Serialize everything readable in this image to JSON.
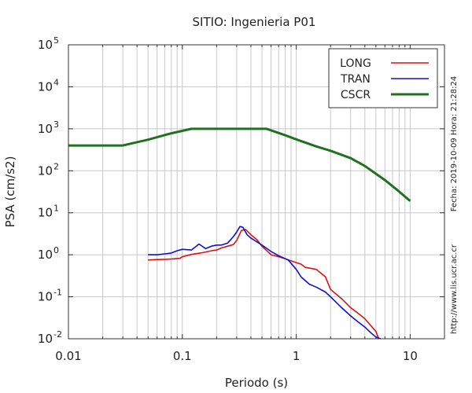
{
  "chart_data": {
    "type": "line",
    "title": "SITIO: Ingenieria P01",
    "xlabel": "Periodo (s)",
    "ylabel": "PSA (cm/s2)",
    "x_scale": "log",
    "y_scale": "log",
    "xlim": [
      0.01,
      20
    ],
    "ylim": [
      0.01,
      100000
    ],
    "grid": true,
    "legend_position": "top-right",
    "x_tick_labels": [
      "0.01",
      "0.1",
      "1",
      "10"
    ],
    "y_tick_labels": [
      {
        "base": "10",
        "exp": "5"
      },
      {
        "base": "10",
        "exp": "4"
      },
      {
        "base": "10",
        "exp": "3"
      },
      {
        "base": "10",
        "exp": "2"
      },
      {
        "base": "10",
        "exp": "1"
      },
      {
        "base": "10",
        "exp": "0"
      },
      {
        "base": "10",
        "exp": "-1"
      },
      {
        "base": "10",
        "exp": "-2"
      }
    ],
    "side_annotations": {
      "date": "Fecha: 2019-10-09 Hora: 21:28:24",
      "url": "http://www.lis.ucr.ac.cr"
    },
    "series": [
      {
        "name": "LONG",
        "color": "#e01010",
        "points": [
          [
            0.05,
            0.75
          ],
          [
            0.06,
            0.77
          ],
          [
            0.07,
            0.78
          ],
          [
            0.08,
            0.79
          ],
          [
            0.095,
            0.82
          ],
          [
            0.1,
            0.9
          ],
          [
            0.12,
            1.02
          ],
          [
            0.15,
            1.12
          ],
          [
            0.18,
            1.25
          ],
          [
            0.2,
            1.3
          ],
          [
            0.22,
            1.45
          ],
          [
            0.25,
            1.6
          ],
          [
            0.28,
            1.75
          ],
          [
            0.3,
            2.2
          ],
          [
            0.33,
            3.8
          ],
          [
            0.36,
            4.0
          ],
          [
            0.4,
            3.0
          ],
          [
            0.45,
            2.3
          ],
          [
            0.5,
            1.6
          ],
          [
            0.6,
            1.0
          ],
          [
            0.7,
            0.9
          ],
          [
            0.8,
            0.8
          ],
          [
            1.0,
            0.65
          ],
          [
            1.1,
            0.6
          ],
          [
            1.2,
            0.5
          ],
          [
            1.5,
            0.45
          ],
          [
            1.8,
            0.3
          ],
          [
            2.0,
            0.15
          ],
          [
            2.5,
            0.09
          ],
          [
            3.0,
            0.055
          ],
          [
            3.5,
            0.04
          ],
          [
            4.0,
            0.03
          ],
          [
            5.0,
            0.015
          ],
          [
            5.3,
            0.01
          ]
        ]
      },
      {
        "name": "TRAN",
        "color": "#1010d0",
        "points": [
          [
            0.05,
            1.0
          ],
          [
            0.06,
            1.0
          ],
          [
            0.07,
            1.05
          ],
          [
            0.08,
            1.1
          ],
          [
            0.09,
            1.25
          ],
          [
            0.1,
            1.35
          ],
          [
            0.12,
            1.3
          ],
          [
            0.14,
            1.8
          ],
          [
            0.16,
            1.4
          ],
          [
            0.18,
            1.6
          ],
          [
            0.2,
            1.7
          ],
          [
            0.22,
            1.7
          ],
          [
            0.25,
            1.9
          ],
          [
            0.28,
            2.7
          ],
          [
            0.3,
            3.5
          ],
          [
            0.32,
            4.7
          ],
          [
            0.34,
            4.5
          ],
          [
            0.37,
            3.0
          ],
          [
            0.4,
            2.5
          ],
          [
            0.5,
            1.7
          ],
          [
            0.6,
            1.2
          ],
          [
            0.7,
            0.95
          ],
          [
            0.85,
            0.75
          ],
          [
            1.0,
            0.45
          ],
          [
            1.1,
            0.3
          ],
          [
            1.3,
            0.2
          ],
          [
            1.5,
            0.17
          ],
          [
            1.8,
            0.13
          ],
          [
            2.0,
            0.1
          ],
          [
            2.5,
            0.055
          ],
          [
            3.0,
            0.035
          ],
          [
            3.5,
            0.025
          ],
          [
            4.0,
            0.019
          ],
          [
            4.5,
            0.014
          ],
          [
            5.0,
            0.011
          ],
          [
            5.5,
            0.01
          ]
        ]
      },
      {
        "name": "CSCR",
        "color": "#207020",
        "points": [
          [
            0.01,
            400
          ],
          [
            0.03,
            400
          ],
          [
            0.05,
            550
          ],
          [
            0.08,
            780
          ],
          [
            0.12,
            1000
          ],
          [
            0.55,
            1000
          ],
          [
            0.8,
            700
          ],
          [
            1.0,
            560
          ],
          [
            1.5,
            380
          ],
          [
            2.0,
            300
          ],
          [
            3.0,
            200
          ],
          [
            4.0,
            130
          ],
          [
            6.0,
            60
          ],
          [
            8.0,
            32
          ],
          [
            10.0,
            19
          ]
        ]
      }
    ]
  }
}
